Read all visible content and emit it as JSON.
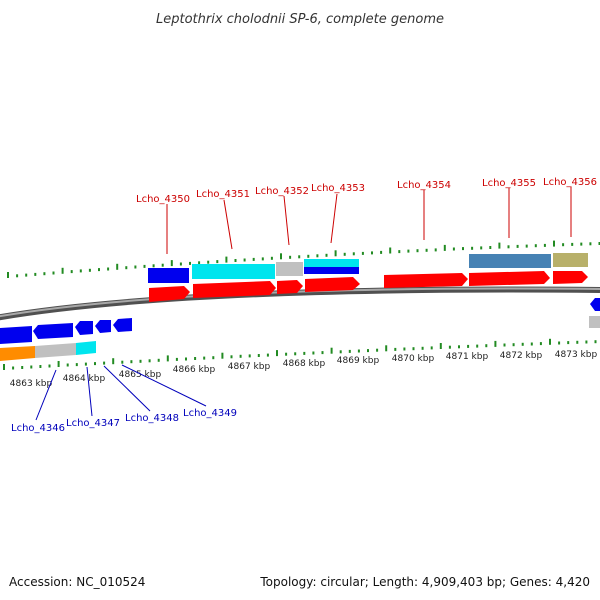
{
  "title": "Leptothrix cholodnii SP-6, complete genome",
  "footer": {
    "accession": "Accession: NC_010524",
    "summary": "Topology: circular; Length: 4,909,403 bp; Genes: 4,420"
  },
  "colors": {
    "backbone": "#808080",
    "tick": "#228b22",
    "forward_cds": "#ff0000",
    "reverse_cds": "#0000ff",
    "cyan": "#00e5ee",
    "gray": "#c0c0c0",
    "orange": "#ff8c00",
    "steelblue": "#4682b4",
    "khaki": "#b8b06a",
    "top_label": "#cc0000",
    "bottom_label": "#0000bb"
  },
  "axis": {
    "kbp_labels": [
      "4863 kbp",
      "4864 kbp",
      "4865 kbp",
      "4866 kbp",
      "4867 kbp",
      "4868 kbp",
      "4869 kbp",
      "4870 kbp",
      "4871 kbp",
      "4872 kbp",
      "4873 kbp"
    ]
  },
  "top_labels": [
    "Lcho_4350",
    "Lcho_4351",
    "Lcho_4352",
    "Lcho_4353",
    "Lcho_4354",
    "Lcho_4355",
    "Lcho_4356"
  ],
  "bottom_labels": [
    "Lcho_4346",
    "Lcho_4347",
    "Lcho_4348",
    "Lcho_4349"
  ]
}
